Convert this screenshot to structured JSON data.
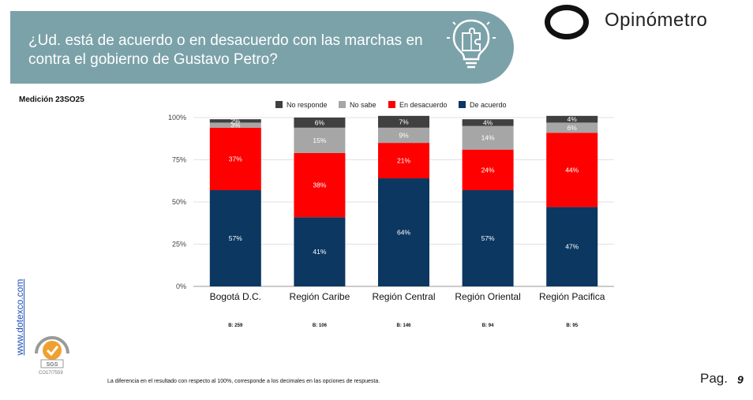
{
  "header": {
    "question": "¿Ud. está de acuerdo o en desacuerdo con las marchas en contra el gobierno de Gustavo Petro?",
    "brand": "Opinómetro"
  },
  "medicion": "Medición 23SO25",
  "side_link": "www.dotexco.com",
  "certificate": "CO17/7559",
  "footnote": "La diferencia en el resultado con respecto al 100%, corresponde a los decimales en las opciones de respuesta.",
  "page": {
    "label": "Pag.",
    "number": "9"
  },
  "colors": {
    "banner": "#7ba2a9",
    "no_responde": "#404040",
    "no_sabe": "#a6a6a6",
    "en_desacuerdo": "#ff0000",
    "de_acuerdo": "#0b3761"
  },
  "chart_data": {
    "type": "bar",
    "stacked": true,
    "categories": [
      "Bogotá D.C.",
      "Región Caribe",
      "Región Central",
      "Región Oriental",
      "Región Pacifica"
    ],
    "bases": [
      "B: 259",
      "B: 106",
      "B: 146",
      "B: 94",
      "B: 95"
    ],
    "ylim": [
      0,
      100
    ],
    "yticks": [
      "0%",
      "25%",
      "50%",
      "75%",
      "100%"
    ],
    "legend": [
      "No responde",
      "No sabe",
      "En desacuerdo",
      "De acuerdo"
    ],
    "series": [
      {
        "name": "De acuerdo",
        "values": [
          57,
          41,
          64,
          57,
          47
        ],
        "labels": [
          "57%",
          "41%",
          "64%",
          "57%",
          "47%"
        ]
      },
      {
        "name": "En desacuerdo",
        "values": [
          37,
          38,
          21,
          24,
          44
        ],
        "labels": [
          "37%",
          "38%",
          "21%",
          "24%",
          "44%"
        ]
      },
      {
        "name": "No sabe",
        "values": [
          3,
          15,
          9,
          14,
          6
        ],
        "labels": [
          "3%",
          "15%",
          "9%",
          "14%",
          "6%"
        ]
      },
      {
        "name": "No responde",
        "values": [
          2,
          6,
          7,
          4,
          4
        ],
        "labels": [
          "2%",
          "6%",
          "7%",
          "4%",
          "4%"
        ]
      }
    ]
  }
}
